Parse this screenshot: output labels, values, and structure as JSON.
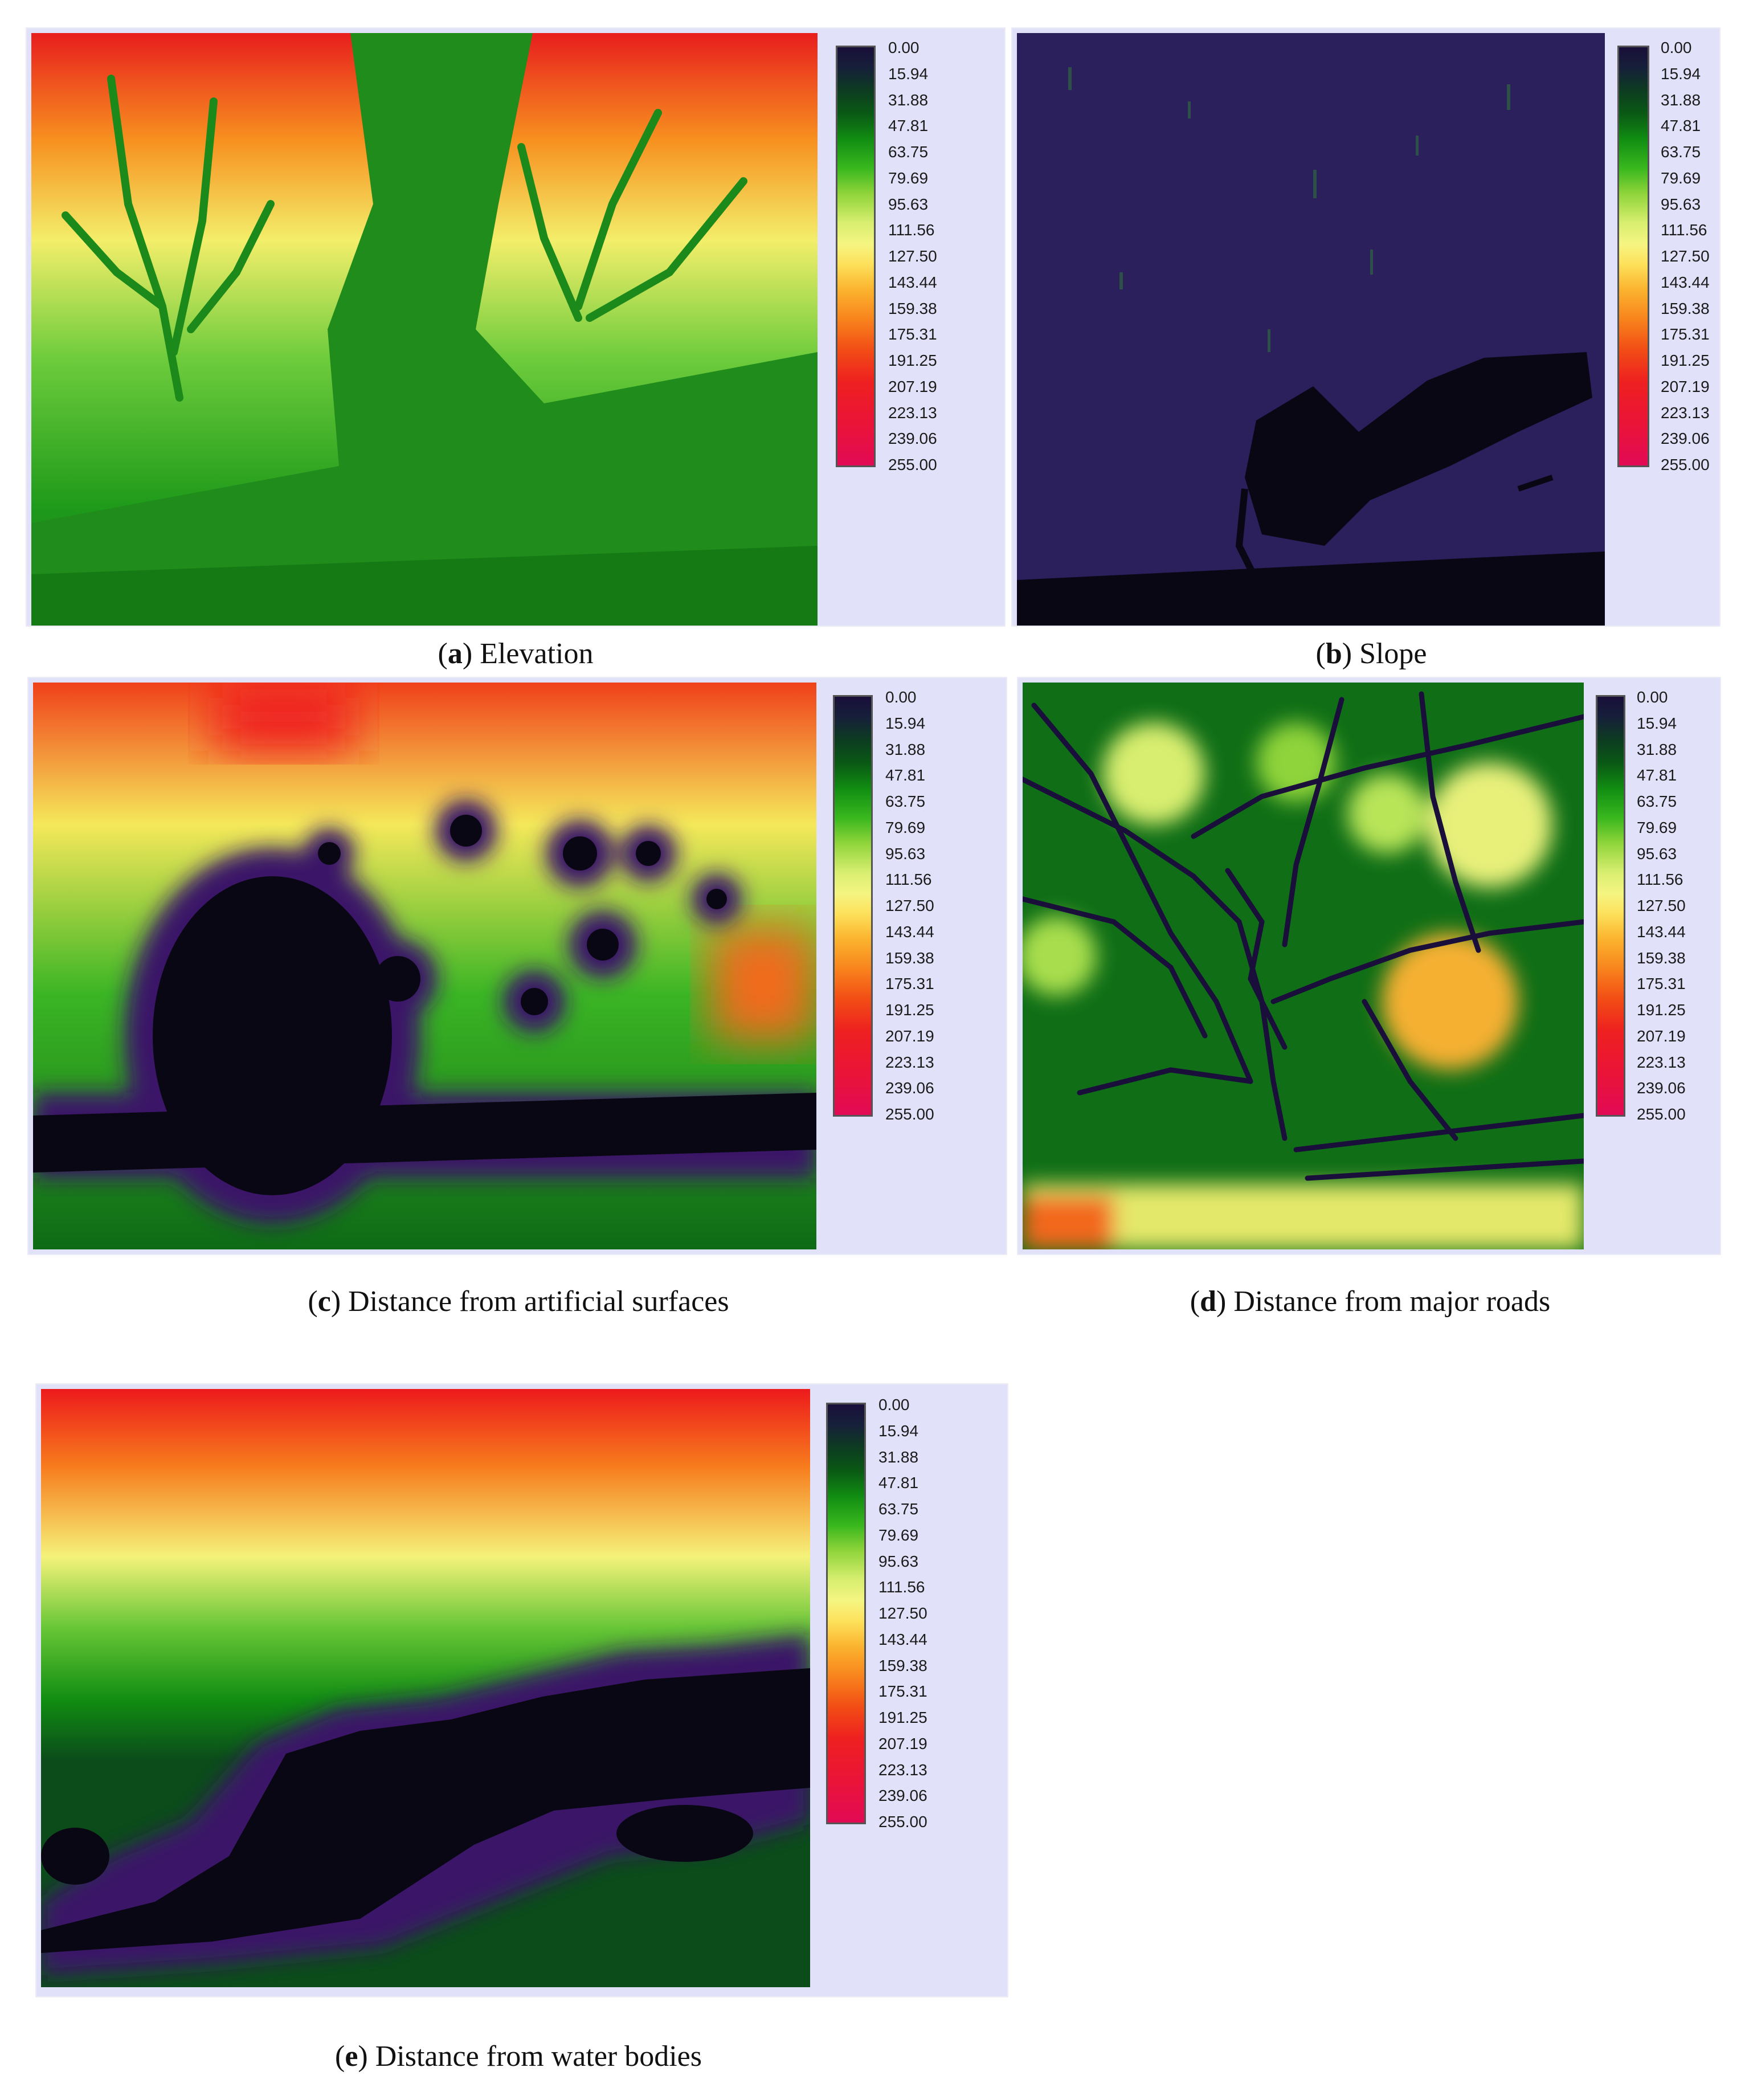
{
  "figure": {
    "legend_ticks": [
      "0.00",
      "15.94",
      "31.88",
      "47.81",
      "63.75",
      "79.69",
      "95.63",
      "111.56",
      "127.50",
      "143.44",
      "159.38",
      "175.31",
      "191.25",
      "207.19",
      "223.13",
      "239.06",
      "255.00"
    ],
    "legend_colormap": [
      "#1a0f3a",
      "#0a5a14",
      "#39b81e",
      "#f5f582",
      "#f8841d",
      "#ee2020",
      "#e20a55"
    ],
    "legend_range": [
      0,
      255
    ]
  },
  "panels": {
    "a": {
      "letter": "a",
      "caption": "Elevation"
    },
    "b": {
      "letter": "b",
      "caption": "Slope"
    },
    "c": {
      "letter": "c",
      "caption": "Distance from artificial surfaces"
    },
    "d": {
      "letter": "d",
      "caption": "Distance from major roads"
    },
    "e": {
      "letter": "e",
      "caption": "Distance from water bodies"
    }
  }
}
